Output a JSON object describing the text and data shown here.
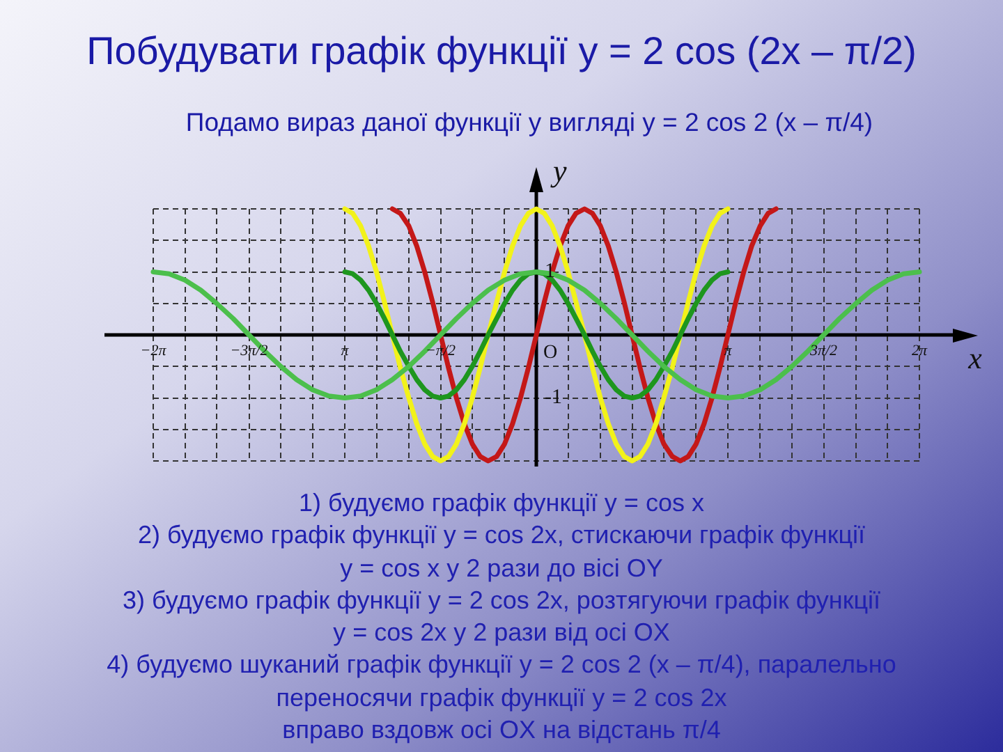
{
  "chart_data": {
    "type": "line",
    "title": "Побудувати графік функції y = 2 cos (2x – π/2)",
    "subtitle": "Подамо вираз даної функції у вигляді y = 2 cos 2 (x – π/4)",
    "xlabel": "x",
    "ylabel": "y",
    "annotations": [
      {
        "text": "O",
        "x": 0,
        "y": 0
      },
      "1) будуємо графік функції y = cos x",
      "2) будуємо графік функції y = cos 2x, стискаючи графік функції",
      "y = cos x у 2 рази до вісі OY",
      "3) будуємо графік функції y = 2 cos 2x, розтягуючи графік функції",
      "y = cos 2x у 2 рази від осі OX",
      "4) будуємо шуканий графік функції y = 2 cos 2 (x – π/4), паралельно",
      "переносячи графік функції y = 2 cos 2x",
      "вправо вздовж осі OX на відстань π/4"
    ],
    "series": [
      {
        "color": "#4cbf4c",
        "x": [
          -6.28,
          -6.02,
          -5.76,
          -5.5,
          -5.24,
          -4.97,
          -4.71,
          -4.45,
          -4.19,
          -3.93,
          -3.67,
          -3.4,
          -3.14,
          -2.88,
          -2.62,
          -2.36,
          -2.09,
          -1.83,
          -1.57,
          -1.31,
          -1.05,
          -0.79,
          -0.52,
          -0.26,
          0,
          0.26,
          0.52,
          0.79,
          1.05,
          1.31,
          1.57,
          1.83,
          2.09,
          2.36,
          2.62,
          2.88,
          3.14,
          3.4,
          3.67,
          3.93,
          4.19,
          4.45,
          4.71,
          4.97,
          5.24,
          5.5,
          5.76,
          6.02,
          6.28
        ],
        "values": [
          1,
          0.97,
          0.87,
          0.71,
          0.5,
          0.26,
          0,
          -0.26,
          -0.5,
          -0.71,
          -0.87,
          -0.97,
          -1,
          -0.97,
          -0.87,
          -0.71,
          -0.5,
          -0.26,
          0,
          0.26,
          0.5,
          0.71,
          0.87,
          0.97,
          1,
          0.97,
          0.87,
          0.71,
          0.5,
          0.26,
          0,
          -0.26,
          -0.5,
          -0.71,
          -0.87,
          -0.97,
          -1,
          -0.97,
          -0.87,
          -0.71,
          -0.5,
          -0.26,
          0,
          0.26,
          0.5,
          0.71,
          0.87,
          0.97,
          1
        ]
      },
      {
        "color": "#1e961e",
        "x": [
          -3.14,
          -3.01,
          -2.88,
          -2.75,
          -2.62,
          -2.49,
          -2.36,
          -2.23,
          -2.09,
          -1.96,
          -1.83,
          -1.7,
          -1.57,
          -1.44,
          -1.31,
          -1.18,
          -1.05,
          -0.92,
          -0.79,
          -0.65,
          -0.52,
          -0.39,
          -0.26,
          -0.13,
          0,
          0.13,
          0.26,
          0.39,
          0.52,
          0.65,
          0.79,
          0.92,
          1.05,
          1.18,
          1.31,
          1.44,
          1.57,
          1.7,
          1.83,
          1.96,
          2.09,
          2.23,
          2.36,
          2.49,
          2.62,
          2.75,
          2.88,
          3.01,
          3.14
        ],
        "values": [
          1,
          0.97,
          0.87,
          0.71,
          0.5,
          0.26,
          0,
          -0.26,
          -0.5,
          -0.71,
          -0.87,
          -0.97,
          -1,
          -0.97,
          -0.87,
          -0.71,
          -0.5,
          -0.26,
          0,
          0.26,
          0.5,
          0.71,
          0.87,
          0.97,
          1,
          0.97,
          0.87,
          0.71,
          0.5,
          0.26,
          0,
          -0.26,
          -0.5,
          -0.71,
          -0.87,
          -0.97,
          -1,
          -0.97,
          -0.87,
          -0.71,
          -0.5,
          -0.26,
          0,
          0.26,
          0.5,
          0.71,
          0.87,
          0.97,
          1
        ]
      },
      {
        "color": "#f2f21a",
        "x": [
          -3.14,
          -3.01,
          -2.88,
          -2.75,
          -2.62,
          -2.49,
          -2.36,
          -2.23,
          -2.09,
          -1.96,
          -1.83,
          -1.7,
          -1.57,
          -1.44,
          -1.31,
          -1.18,
          -1.05,
          -0.92,
          -0.79,
          -0.65,
          -0.52,
          -0.39,
          -0.26,
          -0.13,
          0,
          0.13,
          0.26,
          0.39,
          0.52,
          0.65,
          0.79,
          0.92,
          1.05,
          1.18,
          1.31,
          1.44,
          1.57,
          1.7,
          1.83,
          1.96,
          2.09,
          2.23,
          2.36,
          2.49,
          2.62,
          2.75,
          2.88,
          3.01,
          3.14
        ],
        "values": [
          2,
          1.93,
          1.73,
          1.41,
          1,
          0.52,
          0,
          -0.52,
          -1,
          -1.41,
          -1.73,
          -1.93,
          -2,
          -1.93,
          -1.73,
          -1.41,
          -1,
          -0.52,
          0,
          0.52,
          1,
          1.41,
          1.73,
          1.93,
          2,
          1.93,
          1.73,
          1.41,
          1,
          0.52,
          0,
          -0.52,
          -1,
          -1.41,
          -1.73,
          -1.93,
          -2,
          -1.93,
          -1.73,
          -1.41,
          -1,
          -0.52,
          0,
          0.52,
          1,
          1.41,
          1.73,
          1.93,
          2
        ]
      },
      {
        "color": "#c41818",
        "x": [
          -2.36,
          -2.23,
          -2.09,
          -1.96,
          -1.83,
          -1.7,
          -1.57,
          -1.44,
          -1.31,
          -1.18,
          -1.05,
          -0.92,
          -0.79,
          -0.65,
          -0.52,
          -0.39,
          -0.26,
          -0.13,
          0,
          0.13,
          0.26,
          0.39,
          0.52,
          0.65,
          0.79,
          0.92,
          1.05,
          1.18,
          1.31,
          1.44,
          1.57,
          1.7,
          1.83,
          1.96,
          2.09,
          2.23,
          2.36,
          2.49,
          2.62,
          2.75,
          2.88,
          3.01,
          3.14,
          3.27,
          3.4,
          3.53,
          3.67,
          3.8,
          3.93
        ],
        "values": [
          2,
          1.93,
          1.73,
          1.41,
          1,
          0.52,
          0,
          -0.52,
          -1,
          -1.41,
          -1.73,
          -1.93,
          -2,
          -1.93,
          -1.73,
          -1.41,
          -1,
          -0.52,
          0,
          0.52,
          1,
          1.41,
          1.73,
          1.93,
          2,
          1.93,
          1.73,
          1.41,
          1,
          0.52,
          0,
          -0.52,
          -1,
          -1.41,
          -1.73,
          -1.93,
          -2,
          -1.93,
          -1.73,
          -1.41,
          -1,
          -0.52,
          0,
          0.52,
          1,
          1.41,
          1.73,
          1.93,
          2
        ]
      }
    ],
    "xlim": [
      -6.28,
      6.28
    ],
    "ylim": [
      -2,
      2
    ],
    "xticks": [
      {
        "value": -6.28,
        "label": "−2π"
      },
      {
        "value": -5.76,
        "label": null
      },
      {
        "value": -5.24,
        "label": null
      },
      {
        "value": -4.71,
        "label": "−3π/2"
      },
      {
        "value": -4.19,
        "label": null
      },
      {
        "value": -3.67,
        "label": null
      },
      {
        "value": -3.14,
        "label": "π"
      },
      {
        "value": -2.62,
        "label": null
      },
      {
        "value": -2.09,
        "label": null
      },
      {
        "value": -1.57,
        "label": "−π/2"
      },
      {
        "value": -1.05,
        "label": null
      },
      {
        "value": -0.52,
        "label": null
      },
      {
        "value": 0,
        "label": null
      },
      {
        "value": 0.52,
        "label": null
      },
      {
        "value": 1.05,
        "label": null
      },
      {
        "value": 1.57,
        "label": null
      },
      {
        "value": 2.09,
        "label": null
      },
      {
        "value": 2.62,
        "label": null
      },
      {
        "value": 3.14,
        "label": "π"
      },
      {
        "value": 3.67,
        "label": null
      },
      {
        "value": 4.19,
        "label": null
      },
      {
        "value": 4.71,
        "label": "3π/2"
      },
      {
        "value": 5.24,
        "label": null
      },
      {
        "value": 5.76,
        "label": null
      },
      {
        "value": 6.28,
        "label": "2π"
      }
    ],
    "yticks": [
      {
        "value": -2,
        "label": null
      },
      {
        "value": -1.5,
        "label": null
      },
      -1,
      {
        "value": -0.5,
        "label": null
      },
      {
        "value": 0,
        "label": null
      },
      {
        "value": 0.5,
        "label": null
      },
      1,
      {
        "value": 1.5,
        "label": null
      },
      {
        "value": 2,
        "label": null
      }
    ],
    "grid": true
  }
}
